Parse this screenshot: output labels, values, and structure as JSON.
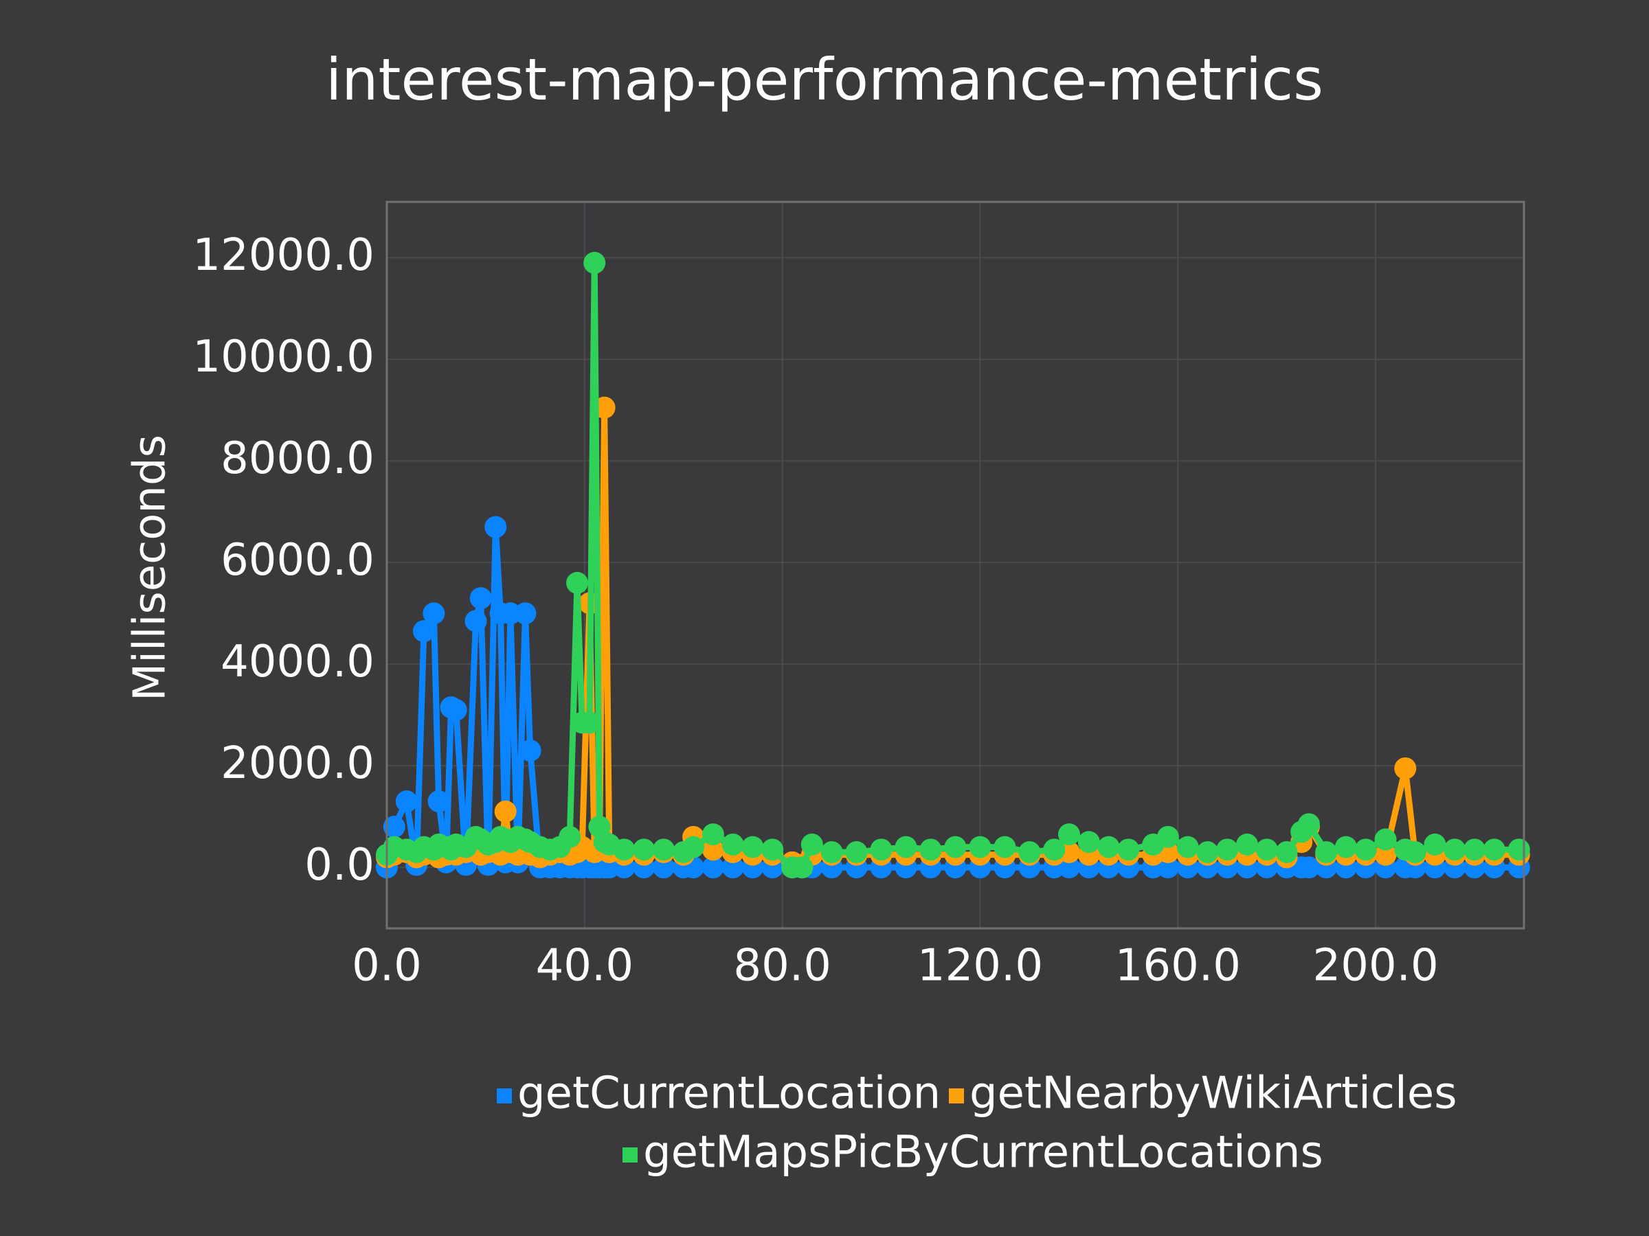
{
  "chart_data": {
    "type": "line",
    "title": "interest-map-performance-metrics",
    "ylabel": "Milliseconds",
    "x": [
      0,
      1.5,
      4,
      6,
      7.5,
      9.5,
      10.5,
      12,
      13,
      14,
      16,
      18,
      19,
      20.5,
      22,
      23,
      24,
      25,
      26.5,
      28,
      29,
      31,
      33,
      35,
      37,
      38.5,
      39.5,
      41,
      42,
      43,
      44,
      45,
      48,
      52,
      56,
      60,
      62,
      66,
      70,
      74,
      78,
      82,
      84,
      86,
      90,
      95,
      100,
      105,
      110,
      115,
      120,
      125,
      130,
      135,
      138,
      142,
      146,
      150,
      155,
      158,
      162,
      166,
      170,
      174,
      178,
      182,
      185,
      186.5,
      190,
      194,
      198,
      202,
      206,
      208,
      212,
      216,
      220,
      224,
      229
    ],
    "series": [
      {
        "name": "getCurrentLocation",
        "color": "#0a84ff",
        "values": [
          0,
          800,
          1300,
          50,
          4650,
          5000,
          1300,
          100,
          3150,
          3100,
          50,
          4850,
          5300,
          50,
          6700,
          5000,
          100,
          5000,
          100,
          5000,
          2300,
          0,
          0,
          0,
          0,
          0,
          0,
          0,
          0,
          0,
          0,
          0,
          0,
          0,
          0,
          0,
          0,
          0,
          0,
          0,
          0,
          0,
          0,
          0,
          0,
          0,
          0,
          0,
          0,
          0,
          0,
          0,
          0,
          0,
          0,
          0,
          0,
          0,
          0,
          0,
          0,
          0,
          0,
          0,
          0,
          0,
          0,
          0,
          0,
          0,
          0,
          0,
          0,
          0,
          0,
          0,
          0,
          0,
          0
        ]
      },
      {
        "name": "getNearbyWikiArticles",
        "color": "#ff9f0a",
        "values": [
          200,
          250,
          300,
          200,
          250,
          300,
          200,
          250,
          300,
          250,
          300,
          350,
          250,
          300,
          350,
          250,
          1100,
          300,
          250,
          300,
          250,
          200,
          250,
          300,
          250,
          300,
          400,
          5200,
          300,
          400,
          9050,
          300,
          250,
          250,
          300,
          250,
          600,
          350,
          300,
          250,
          250,
          100,
          50,
          250,
          250,
          250,
          250,
          250,
          250,
          250,
          250,
          250,
          250,
          250,
          300,
          250,
          250,
          250,
          250,
          300,
          250,
          250,
          250,
          250,
          250,
          200,
          500,
          800,
          250,
          250,
          250,
          250,
          1950,
          250,
          250,
          250,
          250,
          250,
          250
        ]
      },
      {
        "name": "getMapsPicByCurrentLocations",
        "color": "#30d158",
        "values": [
          250,
          400,
          350,
          300,
          400,
          350,
          450,
          400,
          350,
          450,
          400,
          600,
          550,
          450,
          500,
          600,
          550,
          500,
          600,
          550,
          500,
          400,
          350,
          400,
          600,
          5600,
          2850,
          2850,
          11900,
          800,
          500,
          450,
          350,
          350,
          350,
          300,
          400,
          650,
          450,
          400,
          350,
          0,
          0,
          450,
          300,
          300,
          350,
          400,
          350,
          400,
          400,
          400,
          300,
          350,
          650,
          500,
          400,
          350,
          450,
          600,
          400,
          300,
          350,
          450,
          350,
          300,
          700,
          850,
          300,
          400,
          350,
          550,
          350,
          300,
          450,
          350,
          350,
          350,
          350
        ]
      }
    ],
    "xlim": [
      0,
      230
    ],
    "ylim": [
      -1200,
      13100
    ],
    "xticks": [
      {
        "value": 0,
        "label": "0.0"
      },
      {
        "value": 40,
        "label": "40.0"
      },
      {
        "value": 80,
        "label": "80.0"
      },
      {
        "value": 120,
        "label": "120.0"
      },
      {
        "value": 160,
        "label": "160.0"
      },
      {
        "value": 200,
        "label": "200.0"
      }
    ],
    "yticks": [
      {
        "value": 0,
        "label": "0.0"
      },
      {
        "value": 2000,
        "label": "2000.0"
      },
      {
        "value": 4000,
        "label": "4000.0"
      },
      {
        "value": 6000,
        "label": "6000.0"
      },
      {
        "value": 8000,
        "label": "8000.0"
      },
      {
        "value": 10000,
        "label": "10000.0"
      },
      {
        "value": 12000,
        "label": "12000.0"
      }
    ],
    "grid": true,
    "legend": "bottom"
  }
}
